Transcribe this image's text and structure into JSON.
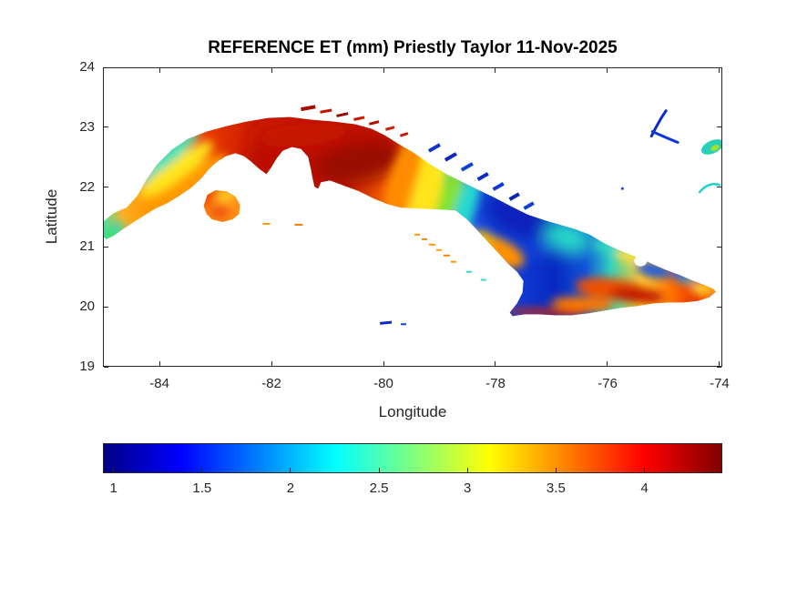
{
  "figure": {
    "title": "REFERENCE ET (mm) Priestly Taylor 11-Nov-2025",
    "background": "#ffffff"
  },
  "axes": {
    "xlabel": "Longitude",
    "ylabel": "Latitude",
    "xlim": [
      -85.01,
      -73.95
    ],
    "ylim": [
      19,
      24
    ],
    "xticks": [
      -84,
      -82,
      -80,
      -78,
      -76,
      -74
    ],
    "yticks": [
      19,
      20,
      21,
      22,
      23,
      24
    ],
    "tick_color": "#262626",
    "box": true
  },
  "colorbar": {
    "orientation": "horizontal",
    "colormap": "jet",
    "range": [
      0.94,
      4.44
    ],
    "ticks": [
      1,
      1.5,
      2,
      2.5,
      3,
      3.5,
      4
    ],
    "tick_labels": [
      "1",
      "1.5",
      "2",
      "2.5",
      "3",
      "3.5",
      "4"
    ]
  },
  "chart_data": {
    "type": "heatmap",
    "title": "REFERENCE ET (mm) Priestly Taylor 11-Nov-2025",
    "xlabel": "Longitude",
    "ylabel": "Latitude",
    "xlim": [
      -85.01,
      -73.95
    ],
    "ylim": [
      19,
      24
    ],
    "grid": false,
    "colormap": "jet",
    "colorbar_range": [
      0.94,
      4.44
    ],
    "colorbar_ticks": [
      1,
      1.5,
      2,
      2.5,
      3,
      3.5,
      4
    ],
    "units": "mm",
    "method": "Priestly Taylor",
    "date": "11-Nov-2025",
    "geography": "Island of Cuba with Isla de la Juventud, northern cays, Cayman islets and Bahamas islets",
    "regions": [
      {
        "name": "western tip (Guanahacabibes)",
        "lon": -84.9,
        "lat": 21.3,
        "approx_et_mm": 2.2
      },
      {
        "name": "northwest coastal band",
        "lon": -84.0,
        "lat": 21.8,
        "approx_et_mm": 2.4
      },
      {
        "name": "western interior (Pinar del Rio)",
        "lon": -83.8,
        "lat": 21.5,
        "approx_et_mm": 3.7
      },
      {
        "name": "west-central Cuba (Havana-Matanzas)",
        "lon": -81.5,
        "lat": 22.8,
        "approx_et_mm": 4.2
      },
      {
        "name": "central dark-red core",
        "lon": -80.5,
        "lat": 22.4,
        "approx_et_mm": 4.4
      },
      {
        "name": "Isla de la Juventud",
        "lon": -82.9,
        "lat": 21.6,
        "approx_et_mm": 3.6
      },
      {
        "name": "central transition stripes",
        "lon": -79.4,
        "lat": 21.9,
        "approx_et_mm": 3.0
      },
      {
        "name": "east-central Cuba (Camaguey) deep blue",
        "lon": -77.5,
        "lat": 21.2,
        "approx_et_mm": 1.1
      },
      {
        "name": "western northern cays",
        "lon": -80.3,
        "lat": 23.0,
        "approx_et_mm": 4.2
      },
      {
        "name": "eastern northern cays",
        "lon": -77.8,
        "lat": 22.2,
        "approx_et_mm": 1.1
      },
      {
        "name": "south Camaguey coastal orange patch",
        "lon": -78.3,
        "lat": 20.9,
        "approx_et_mm": 3.5
      },
      {
        "name": "southeastern coast (Sierra Maestra - Santiago)",
        "lon": -76.0,
        "lat": 20.0,
        "approx_et_mm": 4.1
      },
      {
        "name": "Guantanamo interior blue patches",
        "lon": -75.2,
        "lat": 20.5,
        "approx_et_mm": 1.4
      },
      {
        "name": "eastern tip (Punta Maisi)",
        "lon": -74.3,
        "lat": 20.3,
        "approx_et_mm": 3.1
      },
      {
        "name": "Cayman islets",
        "lon": -79.9,
        "lat": 19.7,
        "approx_et_mm": 1.1
      },
      {
        "name": "Bahamas islets",
        "lon": -74.5,
        "lat": 22.8,
        "approx_et_mm": 1.9
      }
    ]
  }
}
